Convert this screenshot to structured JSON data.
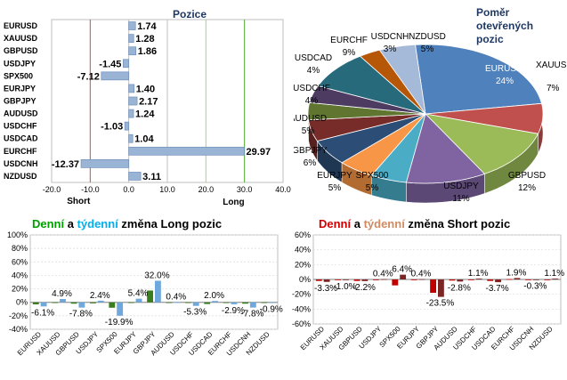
{
  "chart_data": [
    {
      "type": "bar",
      "orientation": "horizontal",
      "title": "Pozice",
      "categories": [
        "EURUSD",
        "XAUUSD",
        "GBPUSD",
        "USDJPY",
        "SPX500",
        "EURJPY",
        "GBPJPY",
        "AUDUSD",
        "USDCHF",
        "USDCAD",
        "EURCHF",
        "USDCNH",
        "NZDUSD"
      ],
      "values": [
        1.74,
        1.28,
        1.86,
        -1.45,
        -7.12,
        1.4,
        2.17,
        1.24,
        -1.03,
        1.04,
        29.97,
        -12.37,
        3.11
      ],
      "value_labels": [
        "1.74",
        "1.28",
        "1.86",
        "-1.45",
        "-7.12",
        "1.40",
        "2.17",
        "1.24",
        "-1.03",
        "1.04",
        "29.97",
        "-12.37",
        "3.11"
      ],
      "xlim": [
        -20,
        40
      ],
      "xticks": [
        "-20.0",
        "-10.0",
        "0.0",
        "10.0",
        "20.0",
        "30.0",
        "40.0"
      ],
      "annotations": [
        "Short",
        "Long"
      ],
      "colors": {
        "bar": "#9ab4d6",
        "bar_edge": "#6f8fb8",
        "short_line": "#c0504d",
        "long_line": "#4ea72e",
        "grid": "#bfbfbf"
      }
    },
    {
      "type": "pie",
      "title": "Poměr otevřených pozic",
      "labels": [
        "EURUSD",
        "XAUUSD",
        "GBPUSD",
        "USDJPY",
        "SPX500",
        "EURJPY",
        "GBPJPY",
        "AUDUSD",
        "USDCHF",
        "USDCAD",
        "EURCHF",
        "USDCNH",
        "NZDUSD"
      ],
      "values": [
        24,
        7,
        12,
        11,
        5,
        5,
        6,
        5,
        4,
        4,
        9,
        3,
        5
      ],
      "value_labels": [
        "24%",
        "7%",
        "12%",
        "11%",
        "5%",
        "5%",
        "6%",
        "5%",
        "4%",
        "4%",
        "9%",
        "3%",
        "5%"
      ],
      "colors": [
        "#4f81bd",
        "#c0504d",
        "#9bbb59",
        "#8064a2",
        "#4bacc6",
        "#f79646",
        "#2c4d75",
        "#772c2a",
        "#5f7530",
        "#4d3b62",
        "#276a7c",
        "#b65708",
        "#a5b9d8"
      ]
    },
    {
      "type": "bar",
      "title_parts": [
        "Denní",
        "a",
        "týdenní",
        "změna Long pozic"
      ],
      "title_colors": [
        "#00a000",
        "#000000",
        "#00b0f0",
        "#000000"
      ],
      "categories": [
        "EURUSD",
        "XAUUSD",
        "GBPUSD",
        "USDJPY",
        "SPX500",
        "EURJPY",
        "GBPJPY",
        "AUDUSD",
        "USDCHF",
        "USDCAD",
        "EURCHF",
        "USDCNH",
        "NZDUSD"
      ],
      "series": [
        {
          "values": [
            -3.0,
            -0.5,
            -2.0,
            -1.5,
            -8.0,
            -1.0,
            17.5,
            -1.0,
            -0.5,
            -2.5,
            -1.0,
            -2.0,
            -1.0
          ]
        },
        {
          "values": [
            -6.1,
            4.9,
            -7.8,
            2.4,
            -19.9,
            5.4,
            32.0,
            0.4,
            -5.3,
            2.0,
            -2.9,
            -7.8,
            -0.9
          ]
        }
      ],
      "value_labels": [
        "-6.1%",
        "4.9%",
        "-7.8%",
        "2.4%",
        "-19.9%",
        "5.4%",
        "32.0%",
        "0.4%",
        "-5.3%",
        "2.0%",
        "-2.9%",
        "-7.8%",
        "-0.9%"
      ],
      "ylim": [
        -40,
        100
      ],
      "yticks": [
        "-40%",
        "-20%",
        "0%",
        "20%",
        "40%",
        "60%",
        "80%",
        "100%"
      ],
      "colors": {
        "daily": "#3a7d1e",
        "weekly": "#6fa8dc"
      }
    },
    {
      "type": "bar",
      "title_parts": [
        "Denní",
        "a",
        "týdenní",
        "změna Short pozic"
      ],
      "title_colors": [
        "#d00000",
        "#000000",
        "#d28b60",
        "#000000"
      ],
      "categories": [
        "EURUSD",
        "XAUUSD",
        "GBPUSD",
        "USDJPY",
        "SPX500",
        "EURJPY",
        "GBPJPY",
        "AUDUSD",
        "USDCHF",
        "USDCAD",
        "EURCHF",
        "USDCNH",
        "NZDUSD"
      ],
      "series": [
        {
          "values": [
            -2.0,
            -1.0,
            -2.0,
            -1.0,
            -8.0,
            -1.0,
            -18.0,
            -1.5,
            -1.0,
            -2.0,
            0.5,
            -0.5,
            -1.0
          ]
        },
        {
          "values": [
            -3.3,
            -1.0,
            -2.2,
            0.4,
            6.4,
            0.4,
            -23.5,
            -2.8,
            1.1,
            -3.7,
            1.9,
            -0.3,
            1.1
          ]
        }
      ],
      "value_labels": [
        "-3.3%",
        "-1.0%",
        "-2.2%",
        "0.4%",
        "6.4%",
        "0.4%",
        "-23.5%",
        "-2.8%",
        "1.1%",
        "-3.7%",
        "1.9%",
        "-0.3%",
        "1.1%"
      ],
      "ylim": [
        -60,
        60
      ],
      "yticks": [
        "-60%",
        "-40%",
        "-20%",
        "0%",
        "20%",
        "40%",
        "60%"
      ],
      "colors": {
        "daily": "#c00000",
        "weekly": "#7b2525"
      }
    }
  ]
}
